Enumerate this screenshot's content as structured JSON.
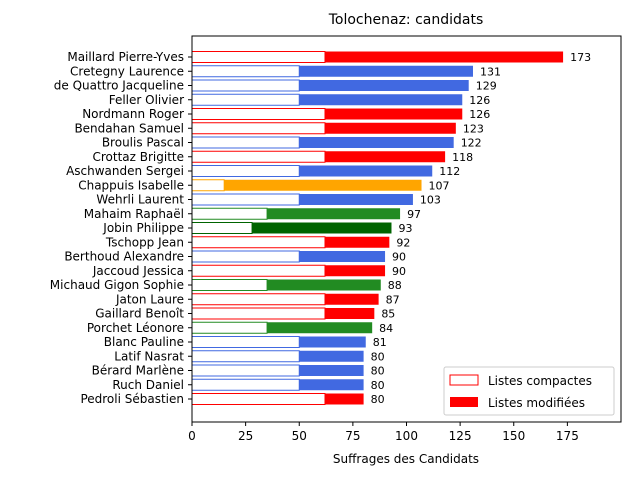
{
  "chart_data": {
    "type": "bar",
    "orientation": "horizontal",
    "title": "Tolochenaz: candidats",
    "xlabel": "Suffrages des Candidats",
    "ylabel": "",
    "xlim": [
      0,
      200
    ],
    "xticks": [
      0,
      25,
      50,
      75,
      100,
      125,
      150,
      175
    ],
    "grid": false,
    "legend_position": "bottom-right",
    "legend": [
      {
        "label": "Listes compactes",
        "style": "outline",
        "color": "#ff0000"
      },
      {
        "label": "Listes modifiées",
        "style": "filled",
        "color": "#ff0000"
      }
    ],
    "colors": {
      "red": "#ff0000",
      "blue": "#4169e1",
      "orange": "#ffa500",
      "green": "#228b22",
      "darkgreen": "#006400"
    },
    "candidates": [
      {
        "name": "Maillard Pierre-Yves",
        "total": 173,
        "compact": 62,
        "color": "red"
      },
      {
        "name": "Cretegny Laurence",
        "total": 131,
        "compact": 50,
        "color": "blue"
      },
      {
        "name": "de Quattro Jacqueline",
        "total": 129,
        "compact": 50,
        "color": "blue"
      },
      {
        "name": "Feller Olivier",
        "total": 126,
        "compact": 50,
        "color": "blue"
      },
      {
        "name": "Nordmann Roger",
        "total": 126,
        "compact": 62,
        "color": "red"
      },
      {
        "name": "Bendahan Samuel",
        "total": 123,
        "compact": 62,
        "color": "red"
      },
      {
        "name": "Broulis Pascal",
        "total": 122,
        "compact": 50,
        "color": "blue"
      },
      {
        "name": "Crottaz Brigitte",
        "total": 118,
        "compact": 62,
        "color": "red"
      },
      {
        "name": "Aschwanden Sergei",
        "total": 112,
        "compact": 50,
        "color": "blue"
      },
      {
        "name": "Chappuis Isabelle",
        "total": 107,
        "compact": 15,
        "color": "orange"
      },
      {
        "name": "Wehrli Laurent",
        "total": 103,
        "compact": 50,
        "color": "blue"
      },
      {
        "name": "Mahaim Raphaël",
        "total": 97,
        "compact": 35,
        "color": "green"
      },
      {
        "name": "Jobin Philippe",
        "total": 93,
        "compact": 28,
        "color": "darkgreen"
      },
      {
        "name": "Tschopp Jean",
        "total": 92,
        "compact": 62,
        "color": "red"
      },
      {
        "name": "Berthoud Alexandre",
        "total": 90,
        "compact": 50,
        "color": "blue"
      },
      {
        "name": "Jaccoud Jessica",
        "total": 90,
        "compact": 62,
        "color": "red"
      },
      {
        "name": "Michaud Gigon Sophie",
        "total": 88,
        "compact": 35,
        "color": "green"
      },
      {
        "name": "Jaton Laure",
        "total": 87,
        "compact": 62,
        "color": "red"
      },
      {
        "name": "Gaillard Benoît",
        "total": 85,
        "compact": 62,
        "color": "red"
      },
      {
        "name": "Porchet Léonore",
        "total": 84,
        "compact": 35,
        "color": "green"
      },
      {
        "name": "Blanc Pauline",
        "total": 81,
        "compact": 50,
        "color": "blue"
      },
      {
        "name": "Latif Nasrat",
        "total": 80,
        "compact": 50,
        "color": "blue"
      },
      {
        "name": "Bérard Marlène",
        "total": 80,
        "compact": 50,
        "color": "blue"
      },
      {
        "name": "Ruch Daniel",
        "total": 80,
        "compact": 50,
        "color": "blue"
      },
      {
        "name": "Pedroli Sébastien",
        "total": 80,
        "compact": 62,
        "color": "red"
      }
    ]
  }
}
